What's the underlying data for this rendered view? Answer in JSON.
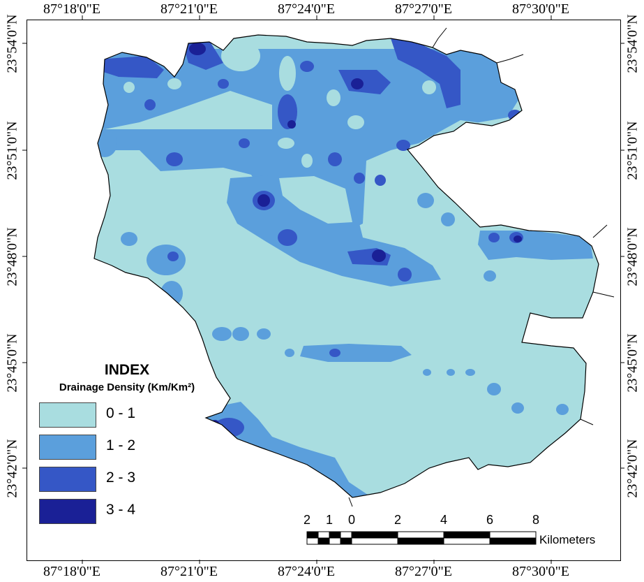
{
  "map": {
    "top_labels": [
      "87°18'0\"E",
      "87°21'0\"E",
      "87°24'0\"E",
      "87°27'0\"E",
      "87°30'0\"E"
    ],
    "bottom_labels": [
      "87°18'0\"E",
      "87°21'0\"E",
      "87°24'0\"E",
      "87°27'0\"E",
      "87°30'0\"E"
    ],
    "left_labels": [
      "23°54'0\"N",
      "23°51'0\"N",
      "23°48'0\"N",
      "23°45'0\"N",
      "23°42'0\"N"
    ],
    "right_labels": [
      "23°54'0\"N",
      "23°51'0\"N",
      "23°48'0\"N",
      "23°45'0\"N",
      "23°42'0\"N"
    ]
  },
  "legend": {
    "title": "INDEX",
    "subtitle": "Drainage Density (Km/Km²)",
    "classes": [
      {
        "label": "0 - 1",
        "color": "#a9dde0"
      },
      {
        "label": "1 - 2",
        "color": "#5b9fdc"
      },
      {
        "label": "2 - 3",
        "color": "#3557c6"
      },
      {
        "label": "3 - 4",
        "color": "#1a2096"
      }
    ]
  },
  "scale_bar": {
    "numbers": [
      "2",
      "1",
      "0",
      "2",
      "4",
      "6",
      "8"
    ],
    "unit": "Kilometers"
  }
}
